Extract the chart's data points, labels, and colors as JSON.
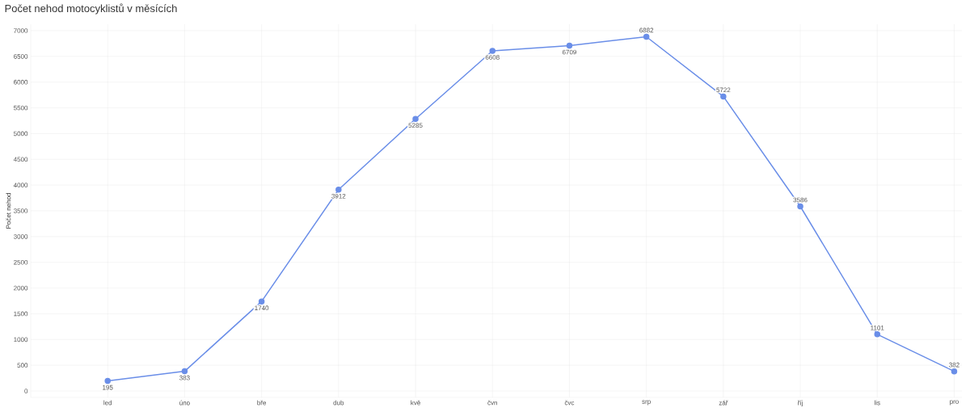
{
  "chart_data": {
    "type": "line",
    "title": "Počet nehod motocyklistů v měsících",
    "ylabel": "Počet nehod",
    "categories": [
      "led",
      "úno",
      "bře",
      "dub",
      "kvě",
      "čvn",
      "čvc",
      "srp",
      "zář",
      "říj",
      "lis",
      "pro"
    ],
    "values": [
      195,
      383,
      1740,
      3912,
      5285,
      6608,
      6709,
      6882,
      5722,
      3586,
      1101,
      382
    ],
    "color": "#6a8ee8",
    "marker": "circle",
    "line_style": "solid",
    "grid": true,
    "data_labels": true,
    "ylim": [
      -125,
      7125
    ],
    "yticks": [
      0,
      500,
      1000,
      1500,
      2000,
      2500,
      3000,
      3500,
      4000,
      4500,
      5000,
      5500,
      6000,
      6500,
      7000
    ]
  }
}
